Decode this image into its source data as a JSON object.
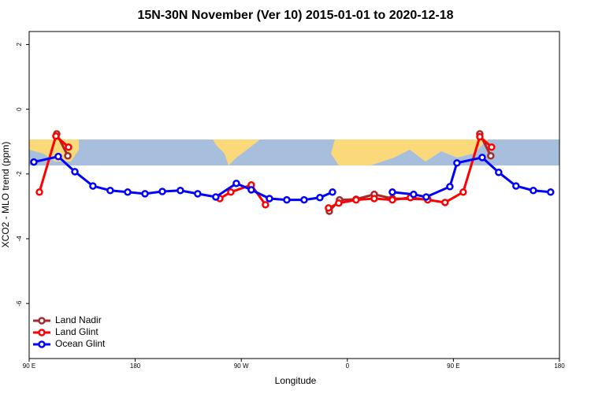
{
  "chart_data": {
    "type": "line",
    "title": "15N-30N November (Ver 10)   2015-01-01 to 2020-12-18",
    "x_label": "Longitude",
    "y_label": "XCO2 - MLO trend (ppm)",
    "xlim": [
      90,
      540
    ],
    "ylim": [
      -7.7,
      2.4
    ],
    "xticks": [
      {
        "value": 90,
        "label": "90 E"
      },
      180,
      {
        "value": 270,
        "label": "90 W"
      },
      {
        "value": 360,
        "label": "0"
      },
      {
        "value": 450,
        "label": "90 E"
      },
      {
        "value": 540,
        "label": "180"
      }
    ],
    "yticks": [
      2,
      0,
      -2,
      -4,
      -6
    ],
    "legend": "bottom-left",
    "series": [
      {
        "name": "Land Nadir",
        "color": "#a52a2a",
        "x": [
          113.4,
          122.8,
          null,
          344.7,
          353.4,
          367.4,
          382.8,
          398.2,
          428.2,
          null,
          472.4,
          481.7
        ],
        "values": [
          -0.76,
          -1.44,
          null,
          -3.15,
          -2.8,
          -2.78,
          -2.63,
          -2.76,
          -2.78,
          null,
          -0.76,
          -1.44
        ]
      },
      {
        "name": "Land Glint",
        "color": "#ff0000",
        "x": [
          98.7,
          112.7,
          123.4,
          null,
          251.8,
          261.1,
          278.5,
          290.5,
          null,
          344,
          352.7,
          367.4,
          382.8,
          398.2,
          413.5,
          428.2,
          442.9,
          458.3,
          472.4,
          482.4
        ],
        "values": [
          -2.56,
          -0.83,
          -1.17,
          null,
          -2.76,
          -2.56,
          -2.34,
          -2.95,
          null,
          -3.05,
          -2.9,
          -2.8,
          -2.76,
          -2.8,
          -2.73,
          -2.8,
          -2.88,
          -2.56,
          -0.85,
          -1.17
        ]
      },
      {
        "name": "Ocean Glint",
        "color": "#0000ff",
        "x": [
          94,
          114.7,
          128.8,
          144.1,
          158.8,
          173.6,
          188.3,
          203,
          218.3,
          233,
          248.4,
          265.8,
          278.5,
          293.9,
          308.6,
          323.3,
          336.7,
          347.4,
          null,
          398.2,
          416.2,
          426.9,
          447,
          453,
          474.4,
          488.4,
          503.1,
          517.8,
          532.5
        ],
        "values": [
          -1.63,
          -1.46,
          -1.93,
          -2.37,
          -2.51,
          -2.56,
          -2.61,
          -2.54,
          -2.51,
          -2.61,
          -2.71,
          -2.29,
          -2.49,
          -2.76,
          -2.8,
          -2.8,
          -2.73,
          -2.56,
          null,
          -2.56,
          -2.63,
          -2.71,
          -2.39,
          -1.66,
          -1.49,
          -1.95,
          -2.37,
          -2.51,
          -2.56
        ]
      }
    ]
  }
}
